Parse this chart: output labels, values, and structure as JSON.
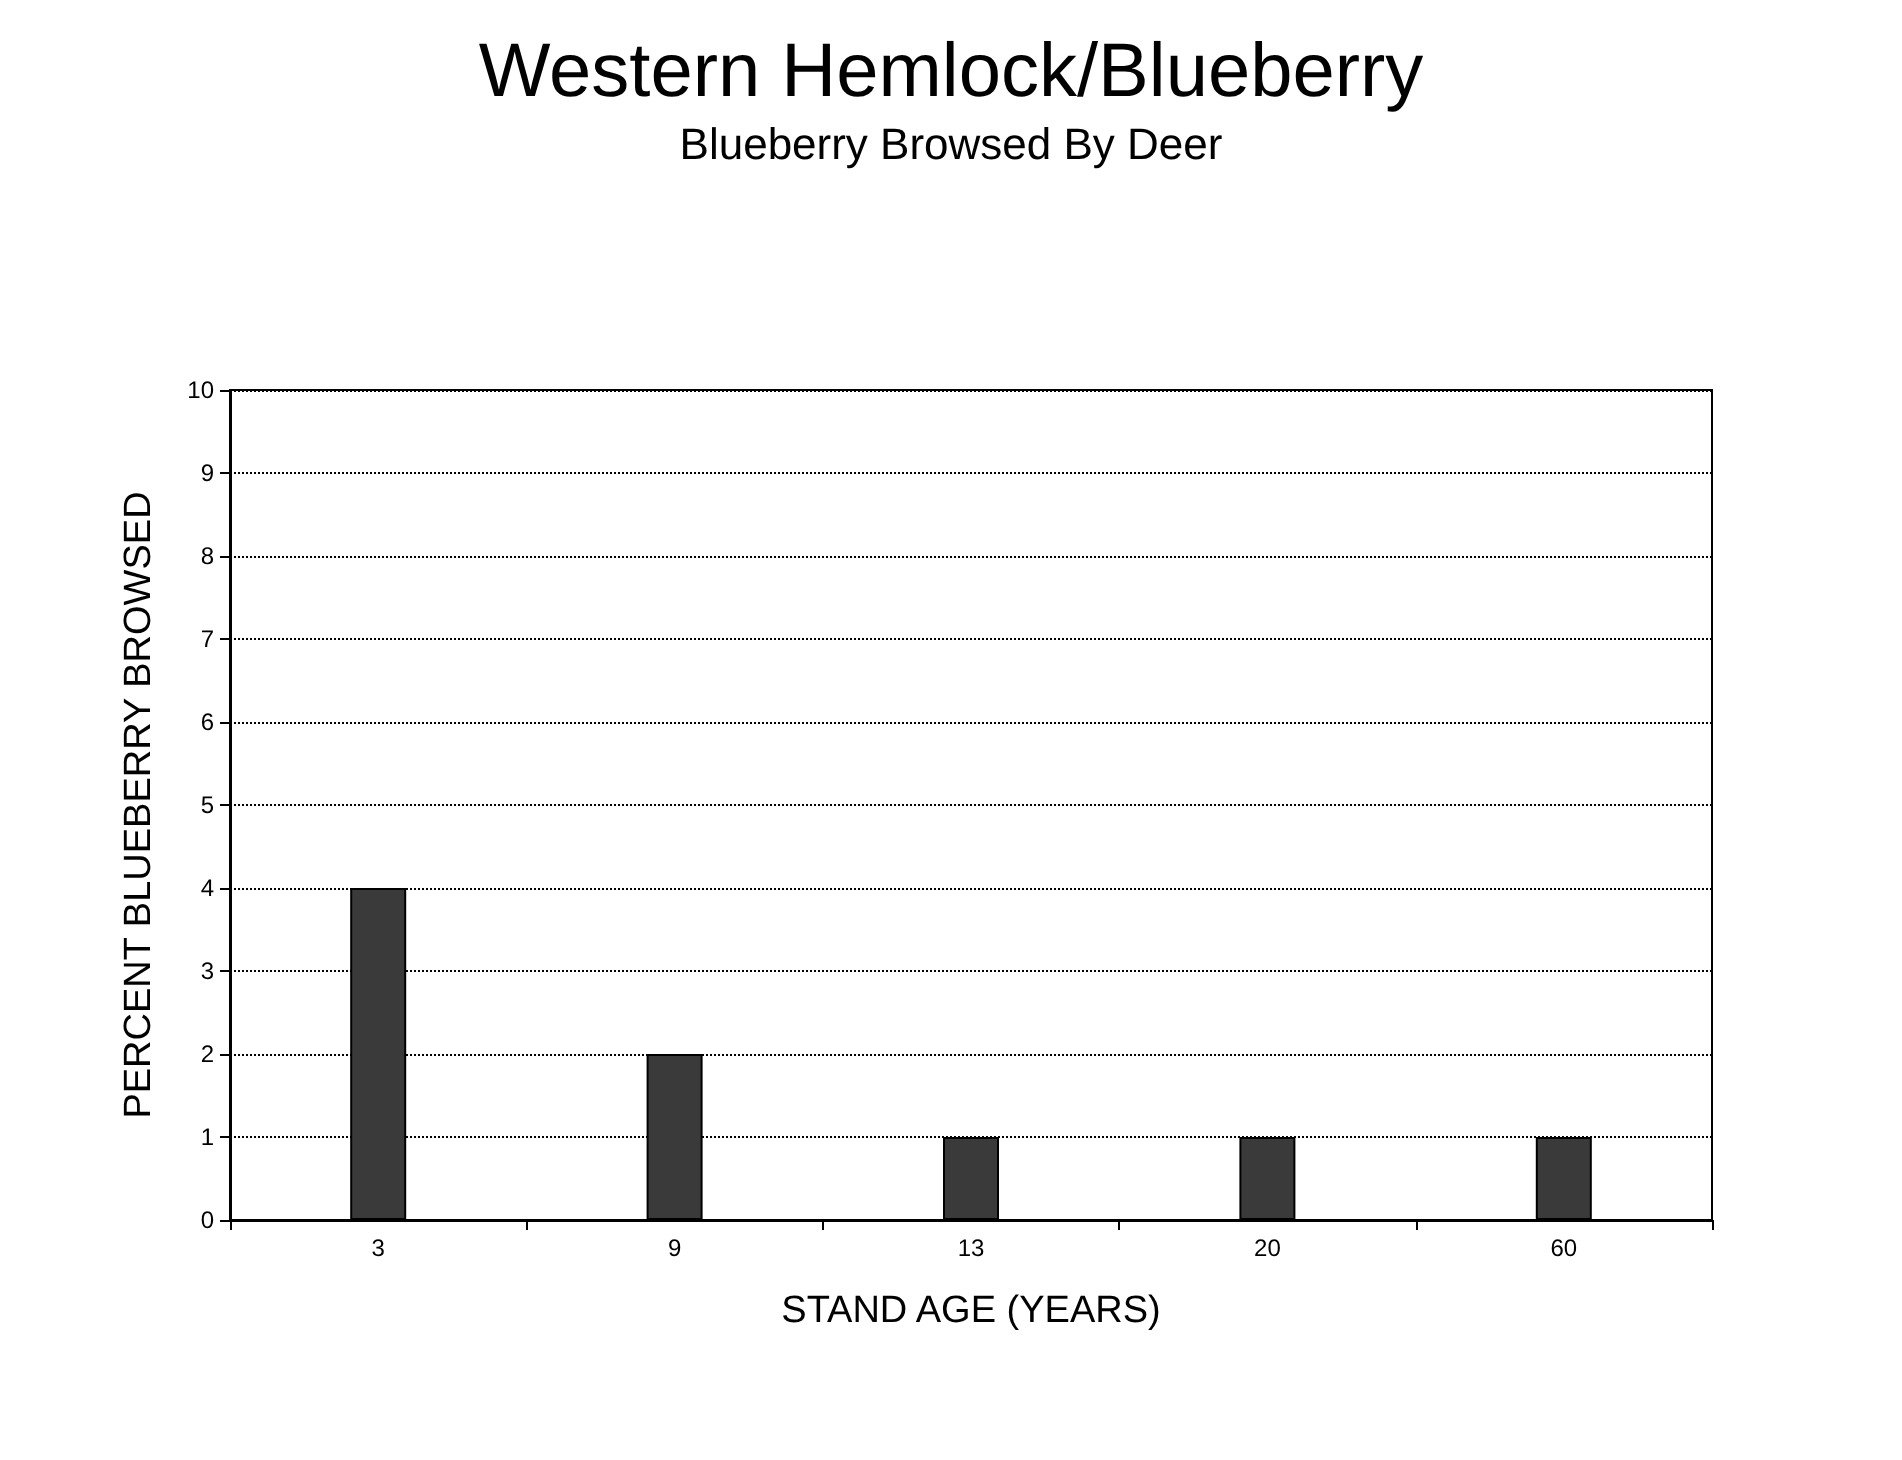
{
  "chart_data": {
    "type": "bar",
    "title": "Western Hemlock/Blueberry",
    "subtitle": "Blueberry Browsed By Deer",
    "xlabel": "STAND AGE (YEARS)",
    "ylabel": "PERCENT BLUEBERRY BROWSED",
    "categories": [
      "3",
      "9",
      "13",
      "20",
      "60"
    ],
    "values": [
      4,
      2,
      1,
      1,
      1
    ],
    "color": "#3a3a3a",
    "ylim": [
      0,
      10
    ],
    "yticks": [
      0,
      1,
      2,
      3,
      4,
      5,
      6,
      7,
      8,
      9,
      10
    ],
    "grid": "y"
  }
}
